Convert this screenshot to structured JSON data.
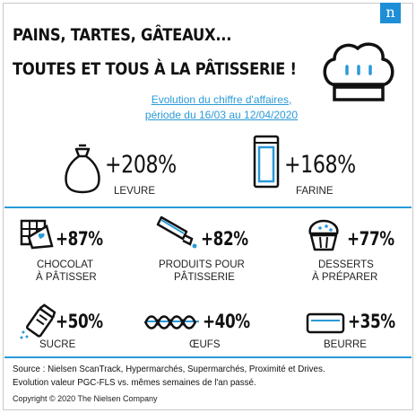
{
  "header": {
    "title_line1": "PAINS, TARTES, GÂTEAUX...",
    "title_line2": "TOUTES ET TOUS À LA PÂTISSERIE !",
    "logo_letter": "n"
  },
  "subtitle": {
    "line1": "Evolution du chiffre d'affaires,",
    "line2": "période du 16/03 au 12/04/2020"
  },
  "highlights": [
    {
      "value": "+208%",
      "label": "LEVURE",
      "icon": "yeast-bag-icon"
    },
    {
      "value": "+168%",
      "label": "FARINE",
      "icon": "flour-packet-icon"
    }
  ],
  "products": [
    {
      "value": "+87%",
      "label_line1": "CHOCOLAT",
      "label_line2": "À PÂTISSER",
      "icon": "chocolate-bar-icon"
    },
    {
      "value": "+82%",
      "label_line1": "PRODUITS POUR",
      "label_line2": "PÂTISSERIE",
      "icon": "piping-bag-icon"
    },
    {
      "value": "+77%",
      "label_line1": "DESSERTS",
      "label_line2": "À PRÉPARER",
      "icon": "muffin-icon"
    },
    {
      "value": "+50%",
      "label_line1": "SUCRE",
      "label_line2": "",
      "icon": "sugar-shaker-icon"
    },
    {
      "value": "+40%",
      "label_line1": "ŒUFS",
      "label_line2": "",
      "icon": "egg-carton-icon"
    },
    {
      "value": "+35%",
      "label_line1": "BEURRE",
      "label_line2": "",
      "icon": "butter-dish-icon"
    }
  ],
  "footer": {
    "source_line1": "Source : Nielsen ScanTrack, Hypermarchés, Supermarchés, Proximité et Drives.",
    "source_line2": "Evolution valeur PGC-FLS vs. mêmes semaines de l'an passé.",
    "copyright": "Copyright © 2020 The Nielsen Company"
  },
  "colors": {
    "accent": "#2a9ad8",
    "logo_bg": "#1e8fd6",
    "text": "#111111"
  }
}
